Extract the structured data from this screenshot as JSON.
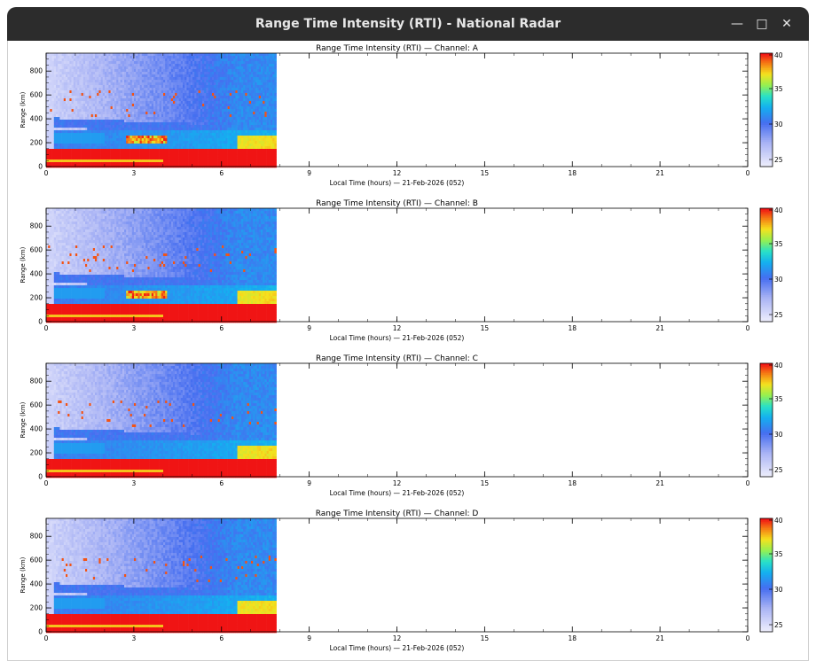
{
  "window": {
    "title": "Range Time Intensity (RTI) - National Radar",
    "minimize_icon": "minimize-icon",
    "maximize_icon": "maximize-icon",
    "close_icon": "close-icon"
  },
  "colors": {
    "titlebar": "#2c2c2c",
    "low": "#e8e8f8",
    "mid_blue": "#4a6ef0",
    "cyan": "#1ab8f0",
    "yellow": "#f0e020",
    "red": "#f01818"
  },
  "colorbar": {
    "ticks": [
      "40",
      "35",
      "30",
      "25"
    ],
    "colors": [
      "#f00000",
      "#f07000",
      "#f0e000",
      "#80f060",
      "#10d8c0",
      "#10a0f0",
      "#3060f0",
      "#e8e8ff"
    ]
  },
  "chart_data": [
    {
      "type": "heatmap",
      "title": "Range Time Intensity (RTI) — Channel: A",
      "xlabel": "Local Time (hours) — 21-Feb-2026 (052)",
      "ylabel": "Range (km)",
      "x_ticks": [
        "0",
        "3",
        "6",
        "9",
        "12",
        "15",
        "18",
        "21",
        "0"
      ],
      "y_ticks": [
        "0",
        "200",
        "400",
        "600",
        "800"
      ],
      "xlim": [
        0,
        24
      ],
      "ylim": [
        0,
        950
      ],
      "data_end_hour": 7.85,
      "bands": {
        "low_red_top_km": 160,
        "blue_layer_km": 380,
        "cyan_layer_km": 260,
        "hot_spot_hour": 3.4,
        "hot_spot_km": 240
      }
    },
    {
      "type": "heatmap",
      "title": "Range Time Intensity (RTI) — Channel: B",
      "xlabel": "Local Time (hours) — 21-Feb-2026 (052)",
      "ylabel": "Range (km)",
      "x_ticks": [
        "0",
        "3",
        "6",
        "9",
        "12",
        "15",
        "18",
        "21",
        "0"
      ],
      "y_ticks": [
        "0",
        "200",
        "400",
        "600",
        "800"
      ],
      "xlim": [
        0,
        24
      ],
      "ylim": [
        0,
        950
      ],
      "data_end_hour": 7.85,
      "bands": {
        "low_red_top_km": 160,
        "blue_layer_km": 380,
        "cyan_layer_km": 260,
        "hot_spot_hour": 3.4,
        "hot_spot_km": 240
      }
    },
    {
      "type": "heatmap",
      "title": "Range Time Intensity (RTI) — Channel: C",
      "xlabel": "Local Time (hours) — 21-Feb-2026 (052)",
      "ylabel": "Range (km)",
      "x_ticks": [
        "0",
        "3",
        "6",
        "9",
        "12",
        "15",
        "18",
        "21",
        "0"
      ],
      "y_ticks": [
        "0",
        "200",
        "400",
        "600",
        "800"
      ],
      "xlim": [
        0,
        24
      ],
      "ylim": [
        0,
        950
      ],
      "data_end_hour": 7.85,
      "bands": {
        "low_red_top_km": 160,
        "blue_layer_km": 380,
        "cyan_layer_km": 280,
        "hot_spot_hour": 0,
        "hot_spot_km": 0
      }
    },
    {
      "type": "heatmap",
      "title": "Range Time Intensity (RTI) — Channel: D",
      "xlabel": "Local Time (hours) — 21-Feb-2026 (052)",
      "ylabel": "Range (km)",
      "x_ticks": [
        "0",
        "3",
        "6",
        "9",
        "12",
        "15",
        "18",
        "21",
        "0"
      ],
      "y_ticks": [
        "0",
        "200",
        "400",
        "600",
        "800"
      ],
      "xlim": [
        0,
        24
      ],
      "ylim": [
        0,
        950
      ],
      "data_end_hour": 7.85,
      "bands": {
        "low_red_top_km": 160,
        "blue_layer_km": 380,
        "cyan_layer_km": 280,
        "hot_spot_hour": 0,
        "hot_spot_km": 0
      }
    }
  ]
}
